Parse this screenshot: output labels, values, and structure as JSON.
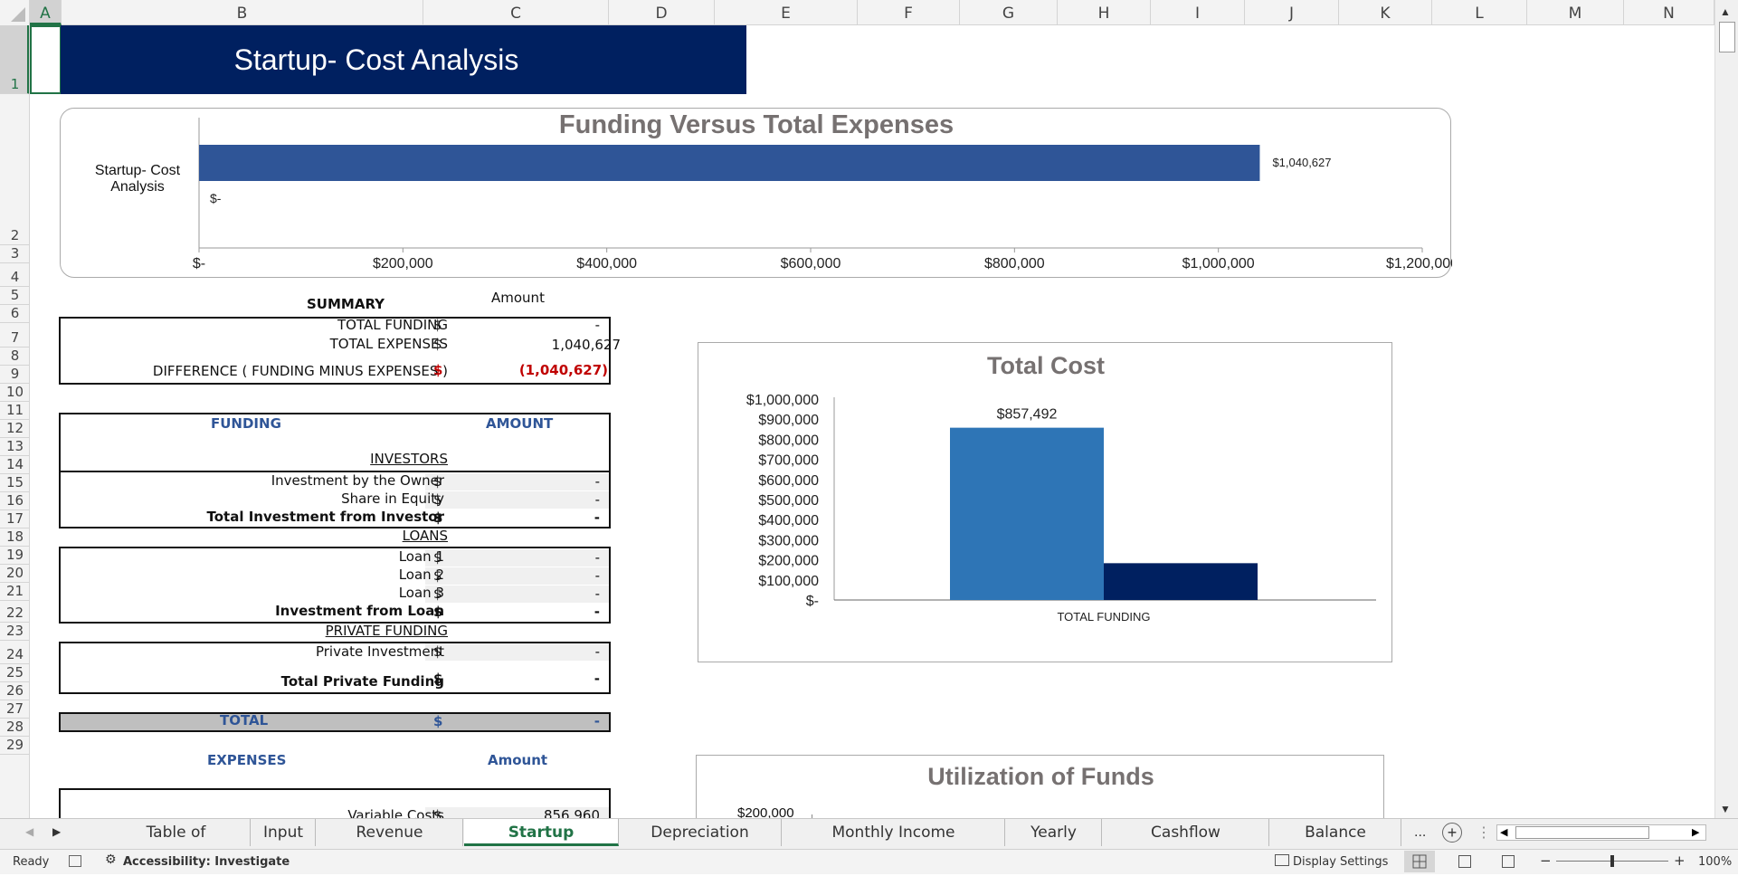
{
  "columns": [
    "A",
    "B",
    "C",
    "D",
    "E",
    "F",
    "G",
    "H",
    "I",
    "J",
    "K",
    "L",
    "M",
    "N"
  ],
  "rows": [
    "1",
    "2",
    "3",
    "4",
    "5",
    "6",
    "7",
    "8",
    "9",
    "10",
    "11",
    "12",
    "13",
    "14",
    "15",
    "16",
    "17",
    "18",
    "19",
    "20",
    "21",
    "22",
    "23",
    "24",
    "25",
    "26",
    "27",
    "28",
    "29"
  ],
  "title_banner": "Startup- Cost Analysis",
  "summary": {
    "heading": "SUMMARY",
    "amount_heading": "Amount",
    "total_funding_label": "TOTAL FUNDING",
    "total_funding_cur": "$",
    "total_funding_value": "-",
    "total_expenses_label": "TOTAL EXPENSES",
    "total_expenses_cur": "$",
    "total_expenses_value": "1,040,627",
    "difference_label": "DIFFERENCE  ( FUNDING MINUS EXPENSES )",
    "difference_cur": "$",
    "difference_value": "(1,040,627)"
  },
  "funding": {
    "heading": "FUNDING",
    "amount_heading": "AMOUNT",
    "investors_label": "INVESTORS",
    "rows_investors": [
      {
        "label": "Investment by the Owner",
        "cur": "$",
        "value": "-"
      },
      {
        "label": "Share in Equity",
        "cur": "$",
        "value": "-"
      },
      {
        "label": "Total Investment from Investor",
        "cur": "$",
        "value": "-"
      }
    ],
    "loans_label": "LOANS",
    "rows_loans": [
      {
        "label": "Loan 1",
        "cur": "$",
        "value": "-"
      },
      {
        "label": "Loan 2",
        "cur": "$",
        "value": "-"
      },
      {
        "label": "Loan 3",
        "cur": "$",
        "value": "-"
      },
      {
        "label": "Investment from Loan",
        "cur": "$",
        "value": "-"
      }
    ],
    "private_label": "PRIVATE FUNDING",
    "private_investment_label": "Private Investment",
    "private_investment_cur": "$",
    "private_investment_value": "-",
    "total_private_label": "Total Private Funding",
    "total_private_cur": "$",
    "total_private_value": "-",
    "total_label": "TOTAL",
    "total_cur": "$",
    "total_value": "-"
  },
  "expenses": {
    "heading": "EXPENSES",
    "amount_heading": "Amount",
    "variable_label": "Variable Costs",
    "variable_cur": "$",
    "variable_value": "856,960"
  },
  "chart_data": [
    {
      "type": "bar",
      "orientation": "horizontal",
      "title": "Funding Versus Total Expenses",
      "categories": [
        "Startup- Cost Analysis"
      ],
      "series": [
        {
          "values": [
            1040627
          ],
          "data_label": "$1,040,627",
          "color": "#2f5597"
        },
        {
          "values": [
            0
          ],
          "data_label": "$-",
          "color": "#2f5597"
        }
      ],
      "xlim": [
        0,
        1200000
      ],
      "x_ticks": [
        "$-",
        "$200,000",
        "$400,000",
        "$600,000",
        "$800,000",
        "$1,000,000",
        "$1,200,000"
      ]
    },
    {
      "type": "bar",
      "title": "Total Cost",
      "categories": [
        "TOTAL FUNDING"
      ],
      "series": [
        {
          "values": [
            857492
          ],
          "data_label": "$857,492",
          "color": "#2e75b6"
        },
        {
          "values": [
            183135
          ],
          "color": "#002060"
        }
      ],
      "ylim": [
        0,
        1000000
      ],
      "y_ticks": [
        "$-",
        "$100,000",
        "$200,000",
        "$300,000",
        "$400,000",
        "$500,000",
        "$600,000",
        "$700,000",
        "$800,000",
        "$900,000",
        "$1,000,000"
      ]
    },
    {
      "type": "bar",
      "title": "Utilization of Funds",
      "y_ticks": [
        "$200,000"
      ]
    }
  ],
  "tabs": [
    "Table of Contents",
    "Input",
    "Revenue Analysis",
    "Startup Summary",
    "Depreciation Table",
    "Monthly Income Statement",
    "Yearly PnL",
    "Cashflow Statement",
    "Balance Sheet"
  ],
  "tab_more": "...",
  "status": {
    "ready": "Ready",
    "accessibility": "Accessibility: Investigate",
    "display_settings": "Display Settings",
    "zoom": "100%"
  },
  "colors": {
    "banner": "#002060",
    "accent": "#217346",
    "link_blue": "#2f5597",
    "negative": "#c00000"
  }
}
